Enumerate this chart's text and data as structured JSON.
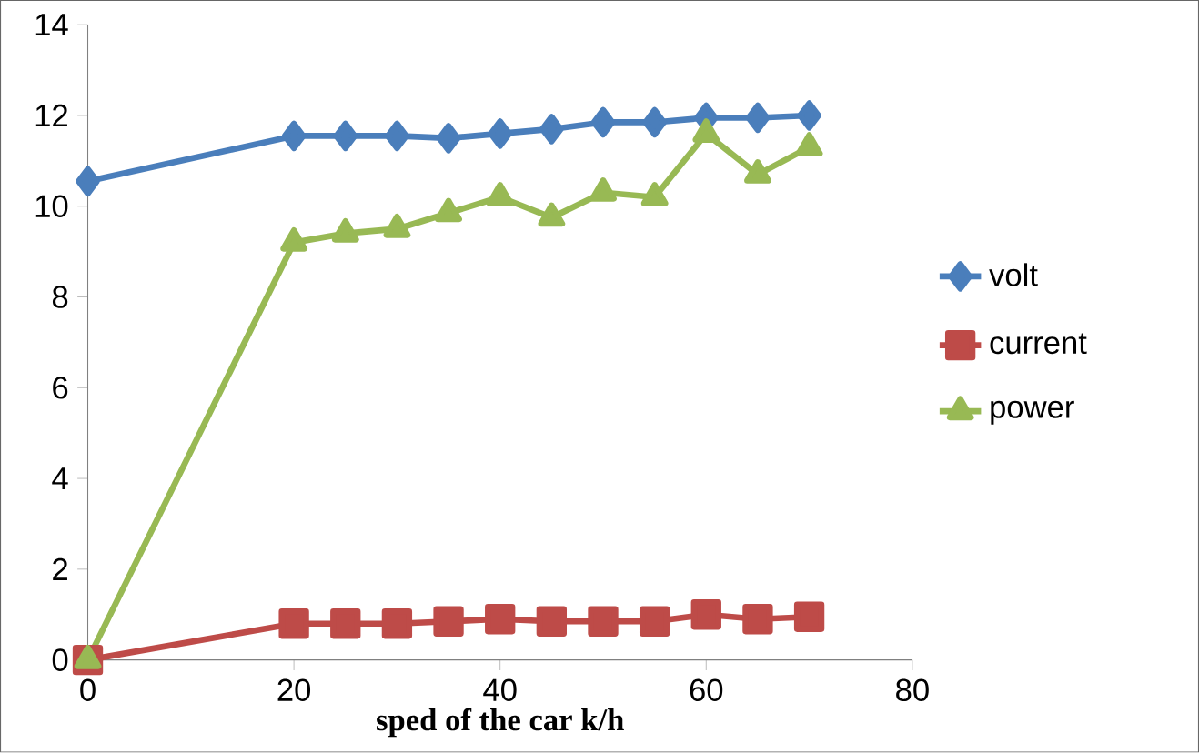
{
  "chart_data": {
    "type": "line",
    "xlabel": "sped of the car k/h",
    "x": [
      0,
      20,
      25,
      30,
      35,
      40,
      45,
      50,
      55,
      60,
      65,
      70
    ],
    "series": [
      {
        "name": "volt",
        "color": "#4a7ebb",
        "marker": "diamond",
        "values": [
          10.55,
          11.55,
          11.55,
          11.55,
          11.5,
          11.6,
          11.7,
          11.85,
          11.85,
          11.95,
          11.95,
          12.0
        ]
      },
      {
        "name": "current",
        "color": "#be4b48",
        "marker": "square",
        "values": [
          0,
          0.8,
          0.8,
          0.8,
          0.85,
          0.9,
          0.85,
          0.85,
          0.85,
          1.0,
          0.9,
          0.95
        ]
      },
      {
        "name": "power",
        "color": "#98b954",
        "marker": "triangle",
        "values": [
          0,
          9.2,
          9.4,
          9.5,
          9.85,
          10.2,
          9.75,
          10.3,
          10.2,
          11.6,
          10.7,
          11.3
        ]
      }
    ],
    "xlim": [
      0,
      80
    ],
    "xticks": [
      0,
      20,
      40,
      60,
      80
    ],
    "ylim": [
      0,
      14
    ],
    "yticks": [
      0,
      2,
      4,
      6,
      8,
      10,
      12,
      14
    ],
    "grid": false,
    "legend": "right"
  }
}
